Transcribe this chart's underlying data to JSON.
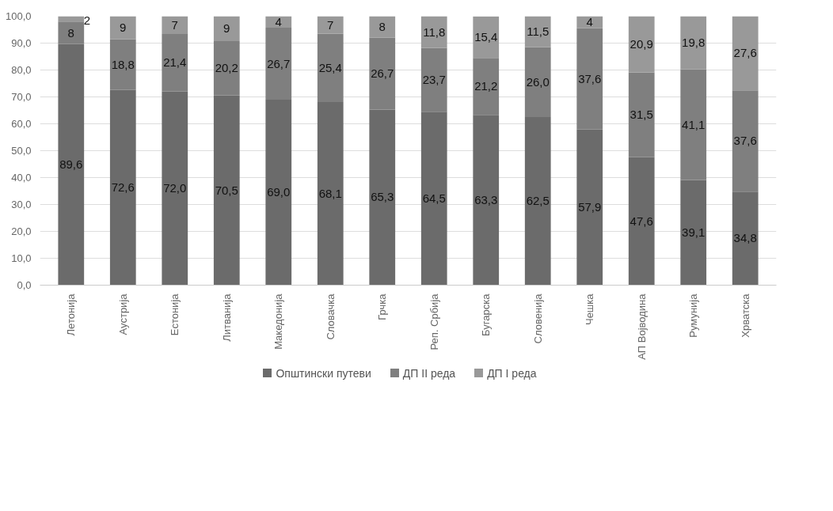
{
  "chart_data": {
    "type": "bar",
    "stacked": true,
    "categories": [
      "Летонија",
      "Аустрија",
      "Естонија",
      "Литванија",
      "Македонија",
      "Словачка",
      "Грчка",
      "Реп. Србија",
      "Бугарска",
      "Словенија",
      "Чешка",
      "АП Војводина",
      "Румунија",
      "Хрватска"
    ],
    "series": [
      {
        "name": "Општински путеви",
        "color": "#6b6b6b",
        "values": [
          89.6,
          72.6,
          72.0,
          70.5,
          69.0,
          68.1,
          65.3,
          64.5,
          63.3,
          62.5,
          57.9,
          47.6,
          39.1,
          34.8
        ],
        "value_labels": [
          "89,6",
          "72,6",
          "72,0",
          "70,5",
          "69,0",
          "68,1",
          "65,3",
          "64,5",
          "63,3",
          "62,5",
          "57,9",
          "47,6",
          "39,1",
          "34,8"
        ]
      },
      {
        "name": "ДП II реда",
        "color": "#7f7f7f",
        "values": [
          8.4,
          18.8,
          21.4,
          20.2,
          26.7,
          25.4,
          26.7,
          23.7,
          21.2,
          26.0,
          37.6,
          31.5,
          41.1,
          37.6
        ],
        "value_labels": [
          "8",
          "18,8",
          "21,4",
          "20,2",
          "26,7",
          "25,4",
          "26,7",
          "23,7",
          "21,2",
          "26,0",
          "37,6",
          "31,5",
          "41,1",
          "37,6"
        ]
      },
      {
        "name": "ДП I реда",
        "color": "#999999",
        "values": [
          2.0,
          8.6,
          6.6,
          9.3,
          4.3,
          6.5,
          8.0,
          11.8,
          15.4,
          11.5,
          4.5,
          20.9,
          19.8,
          27.6
        ],
        "value_labels": [
          "2",
          "9",
          "7",
          "9",
          "4",
          "7",
          "8",
          "11,8",
          "15,4",
          "11,5",
          "4",
          "20,9",
          "19,8",
          "27,6"
        ]
      }
    ],
    "ylim": [
      0,
      100
    ],
    "yticks": [
      {
        "value": 0,
        "label": "0,0"
      },
      {
        "value": 10,
        "label": "10,0"
      },
      {
        "value": 20,
        "label": "20,0"
      },
      {
        "value": 30,
        "label": "30,0"
      },
      {
        "value": 40,
        "label": "40,0"
      },
      {
        "value": 50,
        "label": "50,0"
      },
      {
        "value": 60,
        "label": "60,0"
      },
      {
        "value": 70,
        "label": "70,0"
      },
      {
        "value": 80,
        "label": "80,0"
      },
      {
        "value": 90,
        "label": "90,0"
      },
      {
        "value": 100,
        "label": "100,0"
      }
    ],
    "grid": "y",
    "legend": "bottom"
  }
}
